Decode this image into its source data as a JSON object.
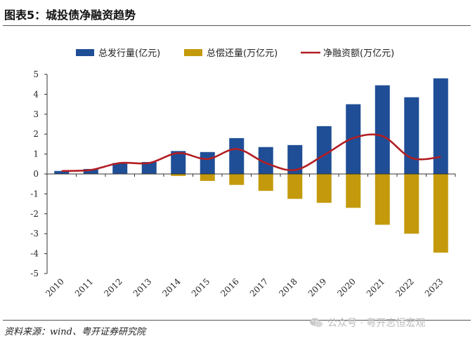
{
  "title": "图表5：城投债净融资趋势",
  "source": "资料来源：wind、粤开证券研究院",
  "watermark": "公众号 · 粤开志恒宏观",
  "colors": {
    "issuance": "#1f4e96",
    "repayment": "#c49a0c",
    "net": "#b21e23"
  },
  "chart_data": {
    "type": "bar",
    "categories": [
      "2010",
      "2011",
      "2012",
      "2013",
      "2014",
      "2015",
      "2016",
      "2017",
      "2018",
      "2019",
      "2020",
      "2021",
      "2022",
      "2023"
    ],
    "series": [
      {
        "name": "总发行量(亿元)",
        "type": "bar",
        "values": [
          0.15,
          0.25,
          0.55,
          0.6,
          1.15,
          1.1,
          1.8,
          1.35,
          1.45,
          2.4,
          3.5,
          4.45,
          3.85,
          4.8
        ]
      },
      {
        "name": "总偿还量(万亿元)",
        "type": "bar",
        "values": [
          0,
          0,
          0,
          -0.02,
          -0.1,
          -0.35,
          -0.55,
          -0.85,
          -1.25,
          -1.45,
          -1.7,
          -2.55,
          -3.0,
          -3.95
        ]
      },
      {
        "name": "净融资额(万亿元)",
        "type": "line",
        "values": [
          0.15,
          0.2,
          0.55,
          0.55,
          1.05,
          0.75,
          1.25,
          0.55,
          0.2,
          0.95,
          1.8,
          1.9,
          0.8,
          0.85
        ]
      }
    ],
    "yticks": [
      "5",
      "4",
      "3",
      "2",
      "1",
      "0",
      "-1",
      "-2",
      "-3",
      "-4",
      "-5"
    ],
    "ylim": [
      -5,
      5
    ],
    "legend_position": "top"
  }
}
